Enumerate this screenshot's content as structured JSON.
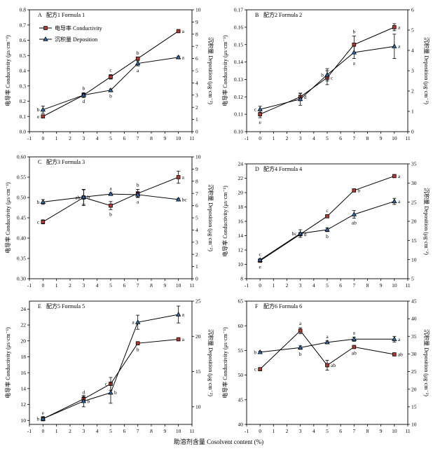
{
  "figure": {
    "x_label": "助溶剂含量 Cosolvent content (%)",
    "legend": {
      "conductivity": "电导率 Conductivity",
      "deposition": "沉积量 Deposition"
    }
  },
  "chart_data": [
    {
      "type": "line",
      "panel": "A",
      "title": "配方1 Formula 1",
      "xlabel": "",
      "ylabel_left": "电导率 Conductivity (μs·cm⁻¹)",
      "ylabel_right": "沉积量 Deposition (μg·cm⁻²)",
      "x": [
        0,
        3,
        5,
        7,
        10
      ],
      "xlim": [
        -1,
        11
      ],
      "xticks": [
        -1,
        0,
        1,
        2,
        3,
        4,
        5,
        6,
        7,
        8,
        9,
        10,
        11
      ],
      "ylim_left": [
        0,
        0.8
      ],
      "yticks_left": [
        0,
        0.1,
        0.2,
        0.3,
        0.4,
        0.5,
        0.6,
        0.7,
        0.8
      ],
      "ylim_right": [
        0,
        10
      ],
      "yticks_right": [
        0,
        1,
        2,
        3,
        4,
        5,
        6,
        7,
        8,
        9,
        10
      ],
      "series": [
        {
          "name": "电导率 Conductivity",
          "axis": "left",
          "marker": "square",
          "values": [
            0.1,
            0.24,
            0.36,
            0.48,
            0.66
          ],
          "errors": [
            0.003,
            0.01,
            0.015,
            0.008,
            0.008
          ],
          "labels": [
            "e",
            "d",
            "c",
            "b",
            "a"
          ],
          "label_pos": [
            "left",
            "below",
            "above",
            "above",
            "right"
          ]
        },
        {
          "name": "沉积量 Deposition",
          "axis": "right",
          "marker": "triangle",
          "values": [
            1.8,
            3.0,
            3.4,
            5.6,
            6.1
          ],
          "errors": [
            0.3,
            0.2,
            0.1,
            0.2,
            0.1
          ],
          "labels": [
            "b",
            "b",
            "b",
            "a",
            "a"
          ],
          "label_pos": [
            "left",
            "above",
            "below",
            "below",
            "right"
          ]
        }
      ]
    },
    {
      "type": "line",
      "panel": "B",
      "title": "配方2 Formula 2",
      "xlabel": "",
      "ylabel_left": "电导率 Conductivity (μs·cm⁻¹)",
      "ylabel_right": "沉积量 Deposition (μg·cm⁻²)",
      "x": [
        0,
        3,
        5,
        7,
        10
      ],
      "xlim": [
        -1,
        11
      ],
      "xticks": [
        -1,
        0,
        1,
        2,
        3,
        4,
        5,
        6,
        7,
        8,
        9,
        10,
        11
      ],
      "ylim_left": [
        0.1,
        0.17
      ],
      "yticks_left": [
        0.1,
        0.11,
        0.12,
        0.13,
        0.14,
        0.15,
        0.16,
        0.17
      ],
      "ylim_right": [
        0,
        6
      ],
      "yticks_right": [
        0,
        1,
        2,
        3,
        4,
        5,
        6
      ],
      "series": [
        {
          "name": "电导率 Conductivity",
          "axis": "left",
          "marker": "square",
          "values": [
            0.11,
            0.12,
            0.131,
            0.15,
            0.16
          ],
          "errors": [
            0.002,
            0.002,
            0.004,
            0.005,
            0.002
          ],
          "labels": [
            "e",
            "d",
            "c",
            "b",
            "a"
          ],
          "label_pos": [
            "below",
            "right",
            "right",
            "above",
            "right"
          ]
        },
        {
          "name": "沉积量 Deposition",
          "axis": "right",
          "marker": "triangle",
          "values": [
            1.1,
            1.6,
            2.8,
            3.9,
            4.2
          ],
          "errors": [
            0.15,
            0.3,
            0.3,
            0.3,
            0.6
          ],
          "labels": [
            "c",
            "c",
            "b",
            "a",
            "a"
          ],
          "label_pos": [
            "left",
            "left",
            "left",
            "below",
            "right"
          ]
        }
      ]
    },
    {
      "type": "line",
      "panel": "C",
      "title": "配方3 Formula 3",
      "xlabel": "",
      "ylabel_left": "电导率 Conductivity (μs·cm⁻¹)",
      "ylabel_right": "沉积量 Deposition (μg·cm⁻²)",
      "x": [
        0,
        3,
        5,
        7,
        10
      ],
      "xlim": [
        -1,
        11
      ],
      "xticks": [
        -1,
        0,
        1,
        2,
        3,
        4,
        5,
        6,
        7,
        8,
        9,
        10,
        11
      ],
      "ylim_left": [
        0.3,
        0.6
      ],
      "yticks_left": [
        0.3,
        0.35,
        0.4,
        0.45,
        0.5,
        0.55,
        0.6
      ],
      "ylim_right": [
        0,
        10
      ],
      "yticks_right": [
        0,
        1,
        2,
        3,
        4,
        5,
        6,
        7,
        8,
        9,
        10
      ],
      "series": [
        {
          "name": "电导率 Conductivity",
          "axis": "left",
          "marker": "square",
          "values": [
            0.44,
            0.5,
            0.48,
            0.51,
            0.55
          ],
          "errors": [
            0.005,
            0.02,
            0.01,
            0.01,
            0.015
          ],
          "labels": [
            "c",
            "ab",
            "b",
            "b",
            "a"
          ],
          "label_pos": [
            "left",
            "left",
            "below",
            "above",
            "right"
          ]
        },
        {
          "name": "沉积量 Deposition",
          "axis": "right",
          "marker": "triangle",
          "values": [
            6.3,
            6.7,
            6.95,
            6.9,
            6.5
          ],
          "errors": [
            0.2,
            0.6,
            0.1,
            0.2,
            0.1
          ],
          "labels": [
            "b",
            "b",
            "a",
            "a",
            "bc"
          ],
          "label_pos": [
            "left",
            "right",
            "above",
            "below",
            "right"
          ]
        }
      ]
    },
    {
      "type": "line",
      "panel": "D",
      "title": "配方4 Formula 4",
      "xlabel": "",
      "ylabel_left": "电导率 Conductivity (μs·cm⁻¹)",
      "ylabel_right": "沉积量 Deposition (μg·cm⁻²)",
      "x": [
        0,
        3,
        5,
        7,
        10
      ],
      "xlim": [
        -1,
        11
      ],
      "xticks": [
        -1,
        0,
        1,
        2,
        3,
        4,
        5,
        6,
        7,
        8,
        9,
        10,
        11
      ],
      "ylim_left": [
        8,
        24
      ],
      "yticks_left": [
        8,
        10,
        12,
        14,
        16,
        18,
        20,
        22,
        24
      ],
      "ylim_right": [
        5,
        35
      ],
      "yticks_right": [
        5,
        10,
        15,
        20,
        25,
        30,
        35
      ],
      "series": [
        {
          "name": "电导率 Conductivity",
          "axis": "left",
          "marker": "square",
          "values": [
            10.5,
            14.2,
            16.7,
            20.3,
            22.3
          ],
          "errors": [
            0.2,
            0.2,
            0.2,
            0.2,
            0.2
          ],
          "labels": [
            "e",
            "d",
            "c",
            "b",
            "a"
          ],
          "label_pos": [
            "below",
            "right",
            "above",
            "right",
            "right"
          ]
        },
        {
          "name": "沉积量 Deposition",
          "axis": "right",
          "marker": "triangle",
          "values": [
            9.9,
            16.8,
            17.8,
            21.8,
            25.2
          ],
          "errors": [
            0.3,
            1.0,
            0.5,
            1.0,
            0.8
          ],
          "labels": [
            "c",
            "bc",
            "b",
            "ab",
            "a"
          ],
          "label_pos": [
            "above",
            "left",
            "below",
            "below",
            "right"
          ]
        }
      ]
    },
    {
      "type": "line",
      "panel": "E",
      "title": "配方5 Formula 5",
      "xlabel": "",
      "ylabel_left": "电导率 Conductivity (μs·cm⁻¹)",
      "ylabel_right": "沉积量 Deposition (μg·cm⁻²)",
      "x": [
        0,
        3,
        5,
        7,
        10
      ],
      "xlim": [
        -1,
        11
      ],
      "xticks": [
        -1,
        0,
        1,
        2,
        3,
        4,
        5,
        6,
        7,
        8,
        9,
        10,
        11
      ],
      "ylim_left": [
        9.5,
        25
      ],
      "yticks_left": [
        10,
        12,
        14,
        16,
        18,
        20,
        22,
        24
      ],
      "ylim_right": [
        7.5,
        25
      ],
      "yticks_right": [
        10,
        15,
        20,
        25
      ],
      "series": [
        {
          "name": "电导率 Conductivity",
          "axis": "left",
          "marker": "square",
          "values": [
            10.2,
            12.7,
            14.6,
            19.7,
            20.2
          ],
          "errors": [
            0.2,
            0.3,
            0.8,
            0.2,
            0.1
          ],
          "labels": [
            "e",
            "d",
            "c",
            "b",
            "a"
          ],
          "label_pos": [
            "above",
            "above",
            "left",
            "below",
            "right"
          ]
        },
        {
          "name": "沉积量 Deposition",
          "axis": "right",
          "marker": "triangle",
          "values": [
            8.3,
            10.8,
            12.0,
            22.0,
            23.1
          ],
          "errors": [
            0.3,
            0.8,
            1.5,
            1.0,
            1.2
          ],
          "labels": [
            "b",
            "b",
            "b",
            "a",
            "a"
          ],
          "label_pos": [
            "left",
            "right",
            "right",
            "left",
            "right"
          ]
        }
      ]
    },
    {
      "type": "line",
      "panel": "F",
      "title": "配方6 Formula 6",
      "xlabel": "",
      "ylabel_left": "电导率 Conductivity (μs·cm⁻¹)",
      "ylabel_right": "沉积量 Deposition (μg·cm⁻²)",
      "x": [
        0,
        3,
        5,
        7,
        10
      ],
      "xlim": [
        -1,
        11
      ],
      "xticks": [
        -1,
        0,
        1,
        2,
        3,
        4,
        5,
        6,
        7,
        8,
        9,
        10,
        11
      ],
      "ylim_left": [
        40,
        65
      ],
      "yticks_left": [
        40,
        45,
        50,
        55,
        60,
        65
      ],
      "ylim_right": [
        10,
        45
      ],
      "yticks_right": [
        10,
        15,
        20,
        25,
        30,
        35,
        40,
        45
      ],
      "series": [
        {
          "name": "电导率 Conductivity",
          "axis": "left",
          "marker": "square",
          "values": [
            51.2,
            59.0,
            52.0,
            55.7,
            54.2
          ],
          "errors": [
            0.3,
            0.6,
            1.0,
            0.3,
            0.2
          ],
          "labels": [
            "c",
            "a",
            "ab",
            "ab",
            "ab"
          ],
          "label_pos": [
            "left",
            "above",
            "right",
            "below",
            "right"
          ]
        },
        {
          "name": "沉积量 Deposition",
          "axis": "right",
          "marker": "triangle",
          "values": [
            30.5,
            31.8,
            33.3,
            34.2,
            34.2
          ],
          "errors": [
            0.3,
            0.5,
            0.4,
            0.6,
            0.8
          ],
          "labels": [
            "b",
            "b",
            "a",
            "a",
            "a"
          ],
          "label_pos": [
            "left",
            "below",
            "above",
            "above",
            "right"
          ]
        }
      ]
    }
  ]
}
